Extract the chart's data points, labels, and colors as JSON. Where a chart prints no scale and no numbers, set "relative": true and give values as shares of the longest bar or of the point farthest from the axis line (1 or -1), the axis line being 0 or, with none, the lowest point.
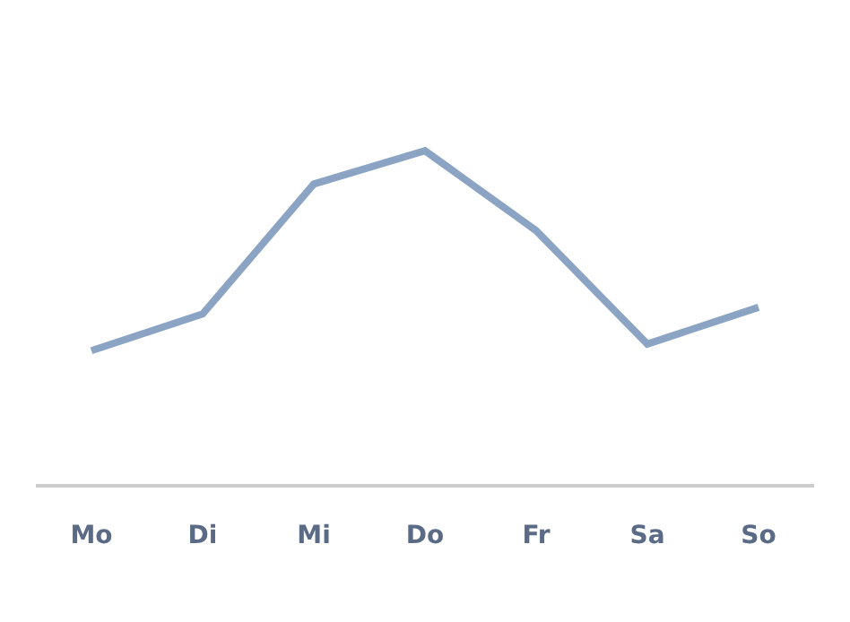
{
  "chart_data": {
    "type": "line",
    "relative": true,
    "categories": [
      "Mo",
      "Di",
      "Mi",
      "Do",
      "Fr",
      "Sa",
      "So"
    ],
    "series": [
      {
        "color": "#8ba4c3",
        "values": [
          0.4,
          0.51,
          0.9,
          1,
          0.76,
          0.42,
          0.53
        ]
      }
    ],
    "grid": false,
    "marker": "none",
    "line_style": "solid"
  }
}
